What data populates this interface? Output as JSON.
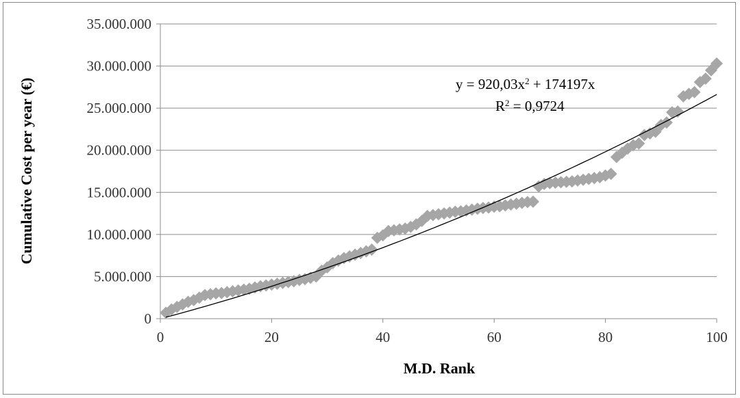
{
  "chart_data": {
    "type": "scatter",
    "title": "",
    "xlabel": "M.D. Rank",
    "ylabel": "Cumulative Cost  per year (€)",
    "xlim": [
      0,
      100
    ],
    "ylim": [
      0,
      35000000
    ],
    "x_ticks": [
      0,
      20,
      40,
      60,
      80,
      100
    ],
    "y_ticks": [
      0,
      5000000,
      10000000,
      15000000,
      20000000,
      25000000,
      30000000,
      35000000
    ],
    "x_tick_labels": [
      "0",
      "20",
      "40",
      "60",
      "80",
      "100"
    ],
    "y_tick_labels": [
      "0",
      "5.000.000",
      "10.000.000",
      "15.000.000",
      "20.000.000",
      "25.000.000",
      "30.000.000",
      "35.000.000"
    ],
    "grid": "horizontal",
    "marker_color": "#a6a6a6",
    "trend_color": "#000000",
    "trendline": {
      "type": "polynomial",
      "coefficients": {
        "a": 920.03,
        "b": 174197
      },
      "equation_label": "y = 920,03x",
      "equation_exp": "2",
      "equation_rest": " + 174197x",
      "r2_label": "R",
      "r2_exp": "2",
      "r2_rest": " = 0,9724"
    },
    "x": [
      1,
      2,
      3,
      4,
      5,
      6,
      7,
      8,
      9,
      10,
      11,
      12,
      13,
      14,
      15,
      16,
      17,
      18,
      19,
      20,
      21,
      22,
      23,
      24,
      25,
      26,
      27,
      28,
      29,
      30,
      31,
      32,
      33,
      34,
      35,
      36,
      37,
      38,
      39,
      40,
      41,
      42,
      43,
      44,
      45,
      46,
      47,
      48,
      49,
      50,
      51,
      52,
      53,
      54,
      55,
      56,
      57,
      58,
      59,
      60,
      61,
      62,
      63,
      64,
      65,
      66,
      67,
      68,
      69,
      70,
      71,
      72,
      73,
      74,
      75,
      76,
      77,
      78,
      79,
      80,
      81,
      82,
      83,
      84,
      85,
      86,
      87,
      88,
      89,
      90,
      91,
      92,
      93,
      94,
      95,
      96,
      97,
      98,
      99,
      100
    ],
    "y": [
      700000,
      1100000,
      1400000,
      1700000,
      2000000,
      2200000,
      2500000,
      2800000,
      2900000,
      3000000,
      3050000,
      3150000,
      3250000,
      3350000,
      3450000,
      3550000,
      3700000,
      3850000,
      3950000,
      4050000,
      4150000,
      4250000,
      4350000,
      4450000,
      4600000,
      4700000,
      4850000,
      5000000,
      5700000,
      6100000,
      6600000,
      6900000,
      7200000,
      7400000,
      7600000,
      7800000,
      8000000,
      8200000,
      9600000,
      9900000,
      10400000,
      10500000,
      10600000,
      10700000,
      10900000,
      11200000,
      11600000,
      12200000,
      12300000,
      12400000,
      12500000,
      12600000,
      12700000,
      12750000,
      12850000,
      12950000,
      13050000,
      13150000,
      13200000,
      13300000,
      13350000,
      13450000,
      13550000,
      13650000,
      13750000,
      13850000,
      13900000,
      15700000,
      16000000,
      16100000,
      16150000,
      16200000,
      16250000,
      16300000,
      16400000,
      16500000,
      16600000,
      16700000,
      16800000,
      17000000,
      17200000,
      19200000,
      19700000,
      20200000,
      20600000,
      20800000,
      21800000,
      22000000,
      22200000,
      23000000,
      23300000,
      24500000,
      24600000,
      26400000,
      26700000,
      26900000,
      28100000,
      28500000,
      29500000,
      30300000
    ]
  }
}
